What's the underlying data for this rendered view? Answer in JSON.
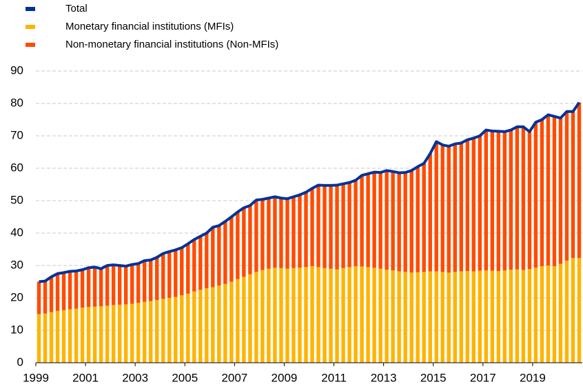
{
  "chart_data": {
    "type": "stacked_bar_line",
    "categories": [
      "1999",
      null,
      null,
      null,
      null,
      null,
      null,
      null,
      "2001",
      null,
      null,
      null,
      null,
      null,
      null,
      null,
      "2003",
      null,
      null,
      null,
      null,
      null,
      null,
      null,
      "2005",
      null,
      null,
      null,
      null,
      null,
      null,
      null,
      "2007",
      null,
      null,
      null,
      null,
      null,
      null,
      null,
      "2009",
      null,
      null,
      null,
      null,
      null,
      null,
      null,
      "2011",
      null,
      null,
      null,
      null,
      null,
      null,
      null,
      "2013",
      null,
      null,
      null,
      null,
      null,
      null,
      null,
      "2015",
      null,
      null,
      null,
      null,
      null,
      null,
      null,
      "2017",
      null,
      null,
      null,
      null,
      null,
      null,
      null,
      "2019",
      null,
      null,
      null,
      null,
      null,
      null,
      null
    ],
    "series": [
      {
        "name": "Total",
        "color": "#003299",
        "kind": "line",
        "values": [
          25,
          25.2,
          26.5,
          27.5,
          27.8,
          28.2,
          28.3,
          28.7,
          29.3,
          29.5,
          29,
          30,
          30.2,
          30,
          29.8,
          30.3,
          30.6,
          31.5,
          31.7,
          32.5,
          33.7,
          34.3,
          34.8,
          35.5,
          36.7,
          38,
          39,
          40,
          41.8,
          42.3,
          43.6,
          45,
          46.5,
          47.8,
          48.5,
          50.2,
          50.4,
          50.8,
          51.2,
          50.8,
          50.6,
          51.2,
          51.8,
          52.6,
          53.8,
          54.8,
          54.7,
          54.7,
          54.8,
          55.2,
          55.6,
          56.3,
          57.8,
          58.3,
          58.8,
          58.7,
          59.3,
          59,
          58.6,
          58.7,
          59.3,
          60.5,
          61.5,
          64.5,
          68.2,
          67.2,
          66.8,
          67.5,
          67.8,
          68.8,
          69.3,
          70,
          71.8,
          71.5,
          71.4,
          71.3,
          71.8,
          72.8,
          72.8,
          71.3,
          74.2,
          75,
          76.5,
          76,
          75.5,
          77.5,
          77.5,
          80.3
        ]
      },
      {
        "name": "Monetary financial institutions (MFIs)",
        "color": "#ffb400",
        "kind": "bar",
        "values": [
          15,
          15.2,
          15.6,
          16,
          16.2,
          16.5,
          16.7,
          17,
          17.2,
          17.3,
          17.4,
          17.6,
          17.8,
          17.9,
          18,
          18.2,
          18.5,
          18.8,
          19,
          19.3,
          19.7,
          20,
          20.3,
          20.8,
          21.3,
          22,
          22.5,
          23,
          23.3,
          23.8,
          24.3,
          25,
          25.8,
          26.5,
          27.3,
          28,
          28.6,
          29,
          29.3,
          29.2,
          29,
          29.2,
          29.3,
          29.5,
          29.8,
          29.5,
          29.2,
          29,
          28.8,
          29.2,
          29.5,
          29.8,
          29.7,
          29.5,
          29.3,
          29,
          28.7,
          28.5,
          28.2,
          28,
          27.8,
          27.9,
          28,
          28.2,
          28.2,
          28,
          27.8,
          28,
          28.2,
          28.3,
          28.2,
          28.4,
          28.5,
          28.4,
          28.3,
          28.5,
          28.7,
          28.8,
          28.6,
          28.9,
          29.3,
          29.8,
          30,
          29.8,
          30.5,
          31.5,
          32.3,
          32.3
        ]
      },
      {
        "name": "Non-monetary financial institutions (Non-MFIs)",
        "color": "#ff4b00",
        "kind": "bar",
        "values": [
          10,
          10,
          10.9,
          11.5,
          11.6,
          11.7,
          11.6,
          11.7,
          12.1,
          12.2,
          11.6,
          12.4,
          12.4,
          12.1,
          11.8,
          12.1,
          12.1,
          12.7,
          12.7,
          13.2,
          14,
          14.3,
          14.5,
          14.7,
          15.4,
          16,
          16.5,
          17,
          18.5,
          18.5,
          19.3,
          20,
          20.7,
          21.3,
          21.2,
          22.2,
          21.8,
          21.8,
          21.9,
          21.6,
          21.6,
          22,
          22.5,
          23.1,
          24,
          25.3,
          25.5,
          25.7,
          26,
          26,
          26.1,
          26.5,
          28.1,
          28.8,
          29.5,
          29.7,
          30.6,
          30.5,
          30.4,
          30.7,
          31.5,
          32.6,
          33.5,
          36.3,
          40,
          39.2,
          39,
          39.5,
          39.6,
          40.5,
          41.1,
          41.6,
          43.3,
          43.1,
          43.1,
          42.8,
          43.1,
          44,
          44.2,
          42.4,
          44.9,
          45.2,
          46.5,
          46.2,
          45,
          46,
          45.2,
          48
        ]
      }
    ],
    "ylim": [
      0,
      90
    ],
    "yticks": [
      0,
      10,
      20,
      30,
      40,
      50,
      60,
      70,
      80,
      90
    ],
    "grid": true
  }
}
